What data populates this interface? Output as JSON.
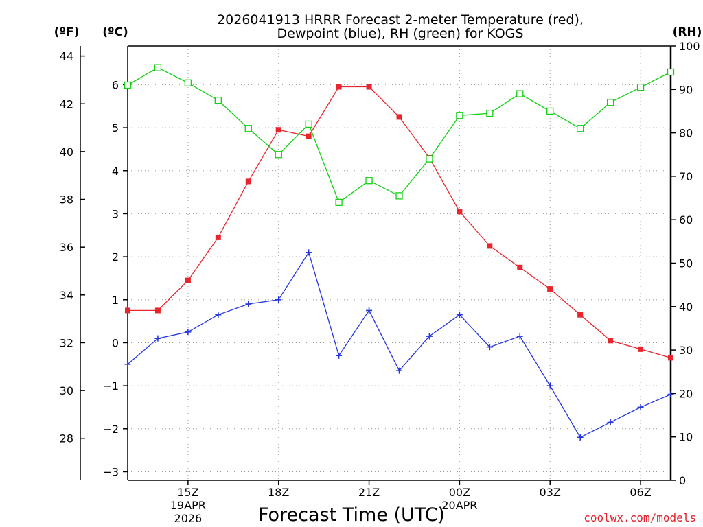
{
  "chart_data": {
    "type": "line",
    "title_line1": "2026041913 HRRR Forecast 2-meter Temperature (red),",
    "title_line2": "Dewpoint (blue), RH (green) for KOGS",
    "xlabel": "Forecast Time (UTC)",
    "credit": "coolwx.com/models",
    "units": {
      "fahrenheit": "(ºF)",
      "celsius": "(ºC)",
      "rh": "(RH)"
    },
    "x": [
      13,
      14,
      15,
      16,
      17,
      18,
      19,
      20,
      21,
      22,
      23,
      24,
      25,
      26,
      27,
      28,
      29,
      30,
      31
    ],
    "xlim": [
      13,
      31
    ],
    "x_ticks": [
      {
        "x": 15,
        "label": "15Z",
        "sub1": "19APR",
        "sub2": "2026"
      },
      {
        "x": 18,
        "label": "18Z"
      },
      {
        "x": 21,
        "label": "21Z"
      },
      {
        "x": 24,
        "label": "00Z",
        "sub1": "20APR"
      },
      {
        "x": 27,
        "label": "03Z"
      },
      {
        "x": 30,
        "label": "06Z"
      }
    ],
    "celsius_axis": {
      "ylim": [
        -3.2,
        6.9
      ],
      "ticks": [
        -3,
        -2,
        -1,
        0,
        1,
        2,
        3,
        4,
        5,
        6
      ],
      "tick_labels": [
        "−3",
        "−2",
        "−1",
        "0",
        "1",
        "2",
        "3",
        "4",
        "5",
        "6"
      ]
    },
    "fahrenheit_axis": {
      "ticks": [
        28,
        30,
        32,
        34,
        36,
        38,
        40,
        42,
        44
      ]
    },
    "rh_axis": {
      "ylim": [
        0,
        100
      ],
      "ticks": [
        0,
        10,
        20,
        30,
        40,
        50,
        60,
        70,
        80,
        90,
        100
      ]
    },
    "series": [
      {
        "name": "Temperature",
        "axis": "celsius",
        "color": "#e8242c",
        "marker": "filled-square",
        "values": [
          0.75,
          0.75,
          1.45,
          2.45,
          3.75,
          4.95,
          4.8,
          5.95,
          5.95,
          5.25,
          4.3,
          3.05,
          2.25,
          1.75,
          1.25,
          0.65,
          0.05,
          -0.15,
          -0.35
        ]
      },
      {
        "name": "Dewpoint",
        "axis": "celsius",
        "color": "#2436e0",
        "marker": "plus",
        "values": [
          -0.5,
          0.1,
          0.25,
          0.65,
          0.9,
          1.0,
          2.1,
          -0.3,
          0.75,
          -0.65,
          0.15,
          0.65,
          -0.1,
          0.15,
          -1.0,
          -2.2,
          -1.85,
          -1.5,
          -1.2
        ]
      },
      {
        "name": "RH",
        "axis": "rh",
        "color": "#10d010",
        "marker": "open-square",
        "values": [
          91,
          95,
          91.5,
          87.5,
          81,
          75,
          82,
          64,
          69,
          65.5,
          74,
          84,
          84.5,
          89,
          85,
          81,
          87,
          90.5,
          94
        ]
      }
    ]
  }
}
